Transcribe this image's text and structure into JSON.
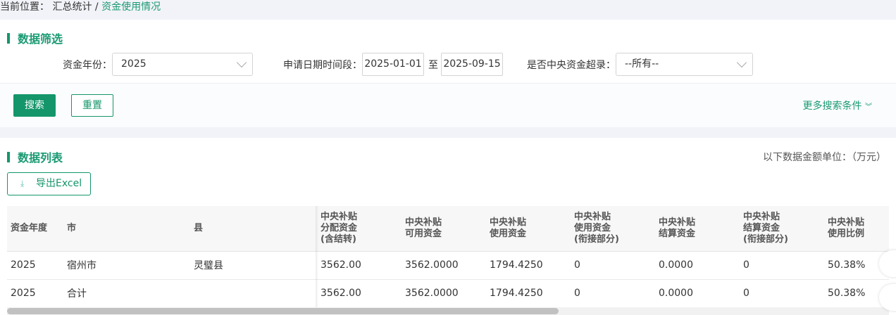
{
  "breadcrumb": {
    "prefix": "当前位置：",
    "parent": "汇总统计",
    "sep": "/",
    "current": "资金使用情况"
  },
  "filter": {
    "title": "数据筛选",
    "year_label": "资金年份：",
    "year_value": "2025",
    "date_label": "申请日期时间段：",
    "date_from": "2025-01-01",
    "date_sep": "至",
    "date_to": "2025-09-15",
    "over_label": "是否中央资金超录：",
    "over_value": "--所有--",
    "search": "搜索",
    "reset": "重置",
    "more": "更多搜索条件",
    "more_icon": "double-chevron-down-icon"
  },
  "list": {
    "title": "数据列表",
    "unit": "以下数据金额单位：（万元）",
    "export": "导出Excel",
    "export_icon": "download-icon",
    "columns": [
      "资金年度",
      "市",
      "县",
      "中央补贴\n分配资金\n(含结转)",
      "中央补贴\n可用资金",
      "中央补贴\n使用资金",
      "中央补贴\n使用资金\n(衔接部分)",
      "中央补贴\n结算资金",
      "中央补贴\n结算资金\n(衔接部分)",
      "中央补贴\n使用比例"
    ],
    "rows": [
      [
        "2025",
        "宿州市",
        "灵璧县",
        "3562.00",
        "3562.0000",
        "1794.4250",
        "0",
        "0.0000",
        "0",
        "50.38%"
      ],
      [
        "2025",
        "合计",
        "",
        "3562.00",
        "3562.0000",
        "1794.4250",
        "0",
        "0.0000",
        "0",
        "50.38%"
      ]
    ]
  },
  "colors": {
    "accent": "#14966a"
  }
}
